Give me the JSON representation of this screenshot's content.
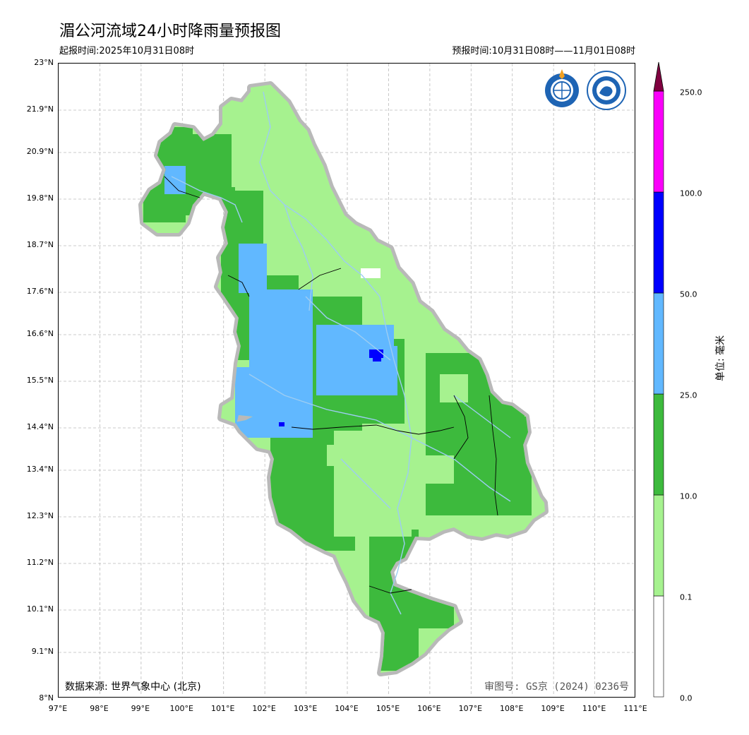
{
  "title": "湄公河流域24小时降雨量预报图",
  "issue_time": "起报时间:2025年10月31日08时",
  "valid_time": "预报时间:10月31日08时——11月01日08时",
  "data_source": "数据来源: 世界气象中心 (北京)",
  "review_number": "审图号: GS京 (2024) 0236号",
  "logos": {
    "wmo": "wmo-logo",
    "cma": "cma-logo"
  },
  "y_ticks": [
    "23°N",
    "21.9°N",
    "20.9°N",
    "19.8°N",
    "18.7°N",
    "17.6°N",
    "16.6°N",
    "15.5°N",
    "14.4°N",
    "13.4°N",
    "12.3°N",
    "11.2°N",
    "10.1°N",
    "9.1°N",
    "8°N"
  ],
  "x_ticks": [
    "97°E",
    "98°E",
    "99°E",
    "100°E",
    "101°E",
    "102°E",
    "103°E",
    "104°E",
    "105°E",
    "106°E",
    "107°E",
    "108°E",
    "109°E",
    "110°E",
    "111°E"
  ],
  "colorbar": {
    "unit": "单位: 毫米",
    "levels": [
      "0.0",
      "0.1",
      "10.0",
      "25.0",
      "50.0",
      "100.0",
      "250.0"
    ],
    "colors": [
      "#ffffff",
      "#a6f28f",
      "#3dba3d",
      "#61b8ff",
      "#0000ff",
      "#fa00fa",
      "#800040"
    ]
  },
  "legend_colors": {
    "light_green": "#a6f28f",
    "green": "#3dba3d",
    "light_blue": "#61b8ff",
    "blue": "#0000ff",
    "river": "#9dcdf2",
    "outline": "#bbbbbb"
  }
}
